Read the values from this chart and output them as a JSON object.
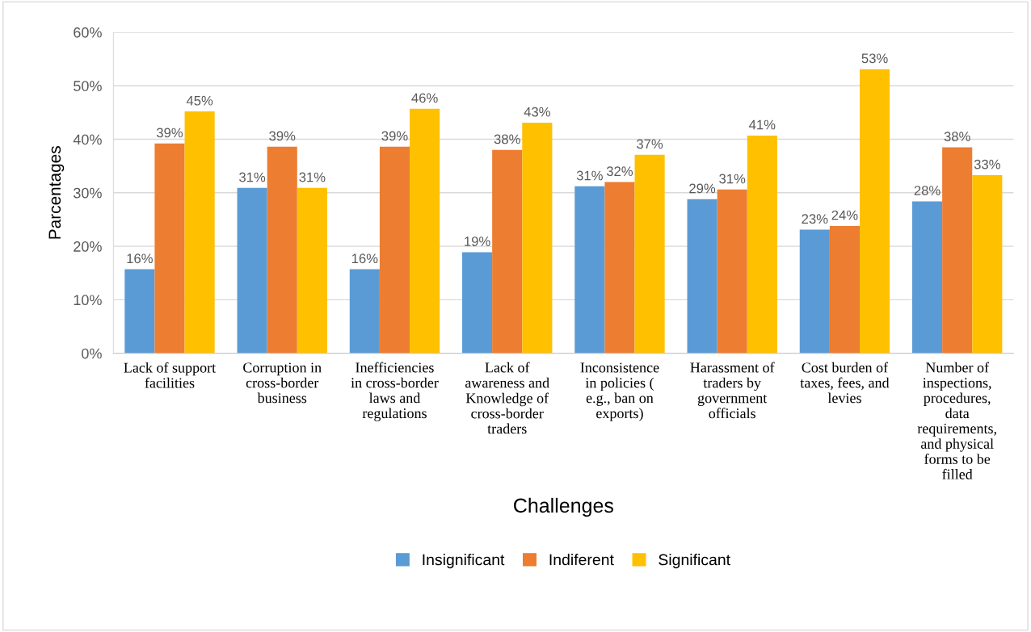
{
  "chart_data": {
    "type": "bar",
    "xlabel": "Challenges",
    "ylabel": "Parcentages",
    "categories": [
      "Lack of support\nfacilities",
      "Corruption in\ncross-border\nbusiness",
      "Inefficiencies\nin cross-border\nlaws and\nregulations",
      "Lack of\nawareness and\nKnowledge of\ncross-border\ntraders",
      "Inconsistence\nin policies (\ne.g., ban on\nexports)",
      "Harassment of\ntraders by\ngovernment\nofficials",
      "Cost burden of\ntaxes, fees, and\nlevies",
      "Number of\ninspections,\nprocedures,\ndata\nrequirements,\nand physical\nforms to be\nfilled"
    ],
    "series": [
      {
        "name": "Insignificant",
        "color": "#5b9bd5",
        "values": [
          15.7,
          30.9,
          15.7,
          18.9,
          31.2,
          28.8,
          23.1,
          28.4
        ],
        "value_labels": [
          "16%",
          "31%",
          "16%",
          "19%",
          "31%",
          "29%",
          "23%",
          "28%"
        ]
      },
      {
        "name": "Indiferent",
        "color": "#ed7d31",
        "values": [
          39.2,
          38.6,
          38.6,
          38.0,
          32.0,
          30.6,
          23.8,
          38.5
        ],
        "value_labels": [
          "39%",
          "39%",
          "39%",
          "38%",
          "32%",
          "31%",
          "24%",
          "38%"
        ]
      },
      {
        "name": "Significant",
        "color": "#ffc000",
        "values": [
          45.2,
          30.9,
          45.7,
          43.1,
          37.1,
          40.7,
          53.1,
          33.3
        ],
        "value_labels": [
          "45%",
          "31%",
          "46%",
          "43%",
          "37%",
          "41%",
          "53%",
          "33%"
        ]
      }
    ],
    "ylim": [
      0,
      60
    ],
    "yticks": [
      {
        "value": 0,
        "label": "0%"
      },
      {
        "value": 10,
        "label": "10%"
      },
      {
        "value": 20,
        "label": "20%"
      },
      {
        "value": 30,
        "label": "30%"
      },
      {
        "value": 40,
        "label": "40%"
      },
      {
        "value": 50,
        "label": "50%"
      },
      {
        "value": 60,
        "label": "60%"
      }
    ],
    "grid": "y",
    "legend": "bottom"
  }
}
